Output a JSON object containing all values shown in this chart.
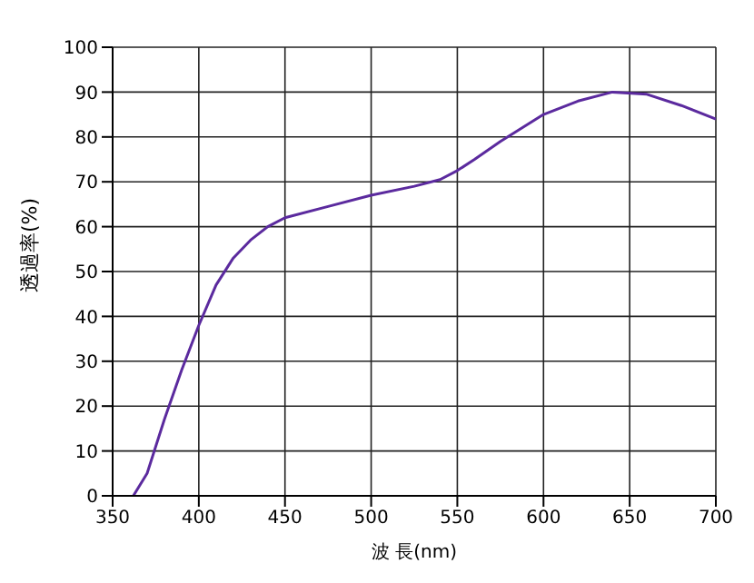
{
  "chart_data": {
    "type": "line",
    "xlabel": "波 長(nm)",
    "ylabel": "透過率(%)",
    "x": [
      362,
      370,
      380,
      390,
      400,
      410,
      420,
      430,
      440,
      450,
      475,
      500,
      525,
      540,
      550,
      560,
      575,
      600,
      620,
      640,
      660,
      680,
      700
    ],
    "series": [
      {
        "color": "#5b2a9e",
        "values": [
          0,
          5,
          17,
          28,
          38,
          47,
          53,
          57,
          60,
          62,
          64.5,
          67,
          69,
          70.5,
          72.5,
          75,
          79,
          85,
          88,
          90,
          89.5,
          87,
          84
        ]
      }
    ],
    "xlim": [
      350,
      700
    ],
    "xticks": [
      350,
      400,
      450,
      500,
      550,
      600,
      650,
      700
    ],
    "ylim": [
      0,
      100
    ],
    "yticks": [
      0,
      10,
      20,
      30,
      40,
      50,
      60,
      70,
      80,
      90,
      100
    ],
    "grid": true,
    "legend": false,
    "marker": "none",
    "line_style": "solid"
  }
}
